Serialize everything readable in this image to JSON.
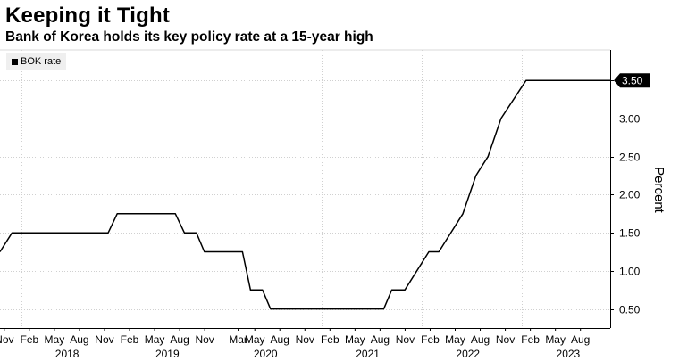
{
  "chart_data": {
    "type": "line",
    "title": "Keeping it Tight",
    "subtitle": "Bank of Korea holds its key policy rate at a 15-year high",
    "ylabel": "Percent",
    "ylim": [
      0.25,
      3.9
    ],
    "yticks": [
      0.5,
      1.0,
      1.5,
      2.0,
      2.5,
      3.0,
      3.5
    ],
    "ytick_labels": [
      "0.50",
      "1.00",
      "1.50",
      "2.00",
      "2.50",
      "3.00",
      "3.50"
    ],
    "xlim": [
      2017.79,
      2023.88
    ],
    "month_ticks": [
      {
        "label": "Nov",
        "x": 2017.833
      },
      {
        "label": "Feb",
        "x": 2018.083
      },
      {
        "label": "May",
        "x": 2018.333
      },
      {
        "label": "Aug",
        "x": 2018.583
      },
      {
        "label": "Nov",
        "x": 2018.833
      },
      {
        "label": "Feb",
        "x": 2019.083
      },
      {
        "label": "May",
        "x": 2019.333
      },
      {
        "label": "Aug",
        "x": 2019.583
      },
      {
        "label": "Nov",
        "x": 2019.833
      },
      {
        "label": "Mar",
        "x": 2020.167
      },
      {
        "label": "May",
        "x": 2020.333
      },
      {
        "label": "Aug",
        "x": 2020.583
      },
      {
        "label": "Nov",
        "x": 2020.833
      },
      {
        "label": "Feb",
        "x": 2021.083
      },
      {
        "label": "May",
        "x": 2021.333
      },
      {
        "label": "Aug",
        "x": 2021.583
      },
      {
        "label": "Nov",
        "x": 2021.833
      },
      {
        "label": "Feb",
        "x": 2022.083
      },
      {
        "label": "May",
        "x": 2022.333
      },
      {
        "label": "Aug",
        "x": 2022.583
      },
      {
        "label": "Nov",
        "x": 2022.833
      },
      {
        "label": "Feb",
        "x": 2023.083
      },
      {
        "label": "May",
        "x": 2023.333
      },
      {
        "label": "Aug",
        "x": 2023.583
      }
    ],
    "year_ticks": [
      {
        "label": "2018",
        "x": 2018.46
      },
      {
        "label": "2019",
        "x": 2019.46
      },
      {
        "label": "2020",
        "x": 2020.44
      },
      {
        "label": "2021",
        "x": 2021.46
      },
      {
        "label": "2022",
        "x": 2022.46
      },
      {
        "label": "2023",
        "x": 2023.46
      }
    ],
    "series": [
      {
        "name": "BOK rate",
        "color": "#000000",
        "last_value_label": "3.50",
        "points": [
          [
            2017.79,
            1.25
          ],
          [
            2017.91,
            1.5
          ],
          [
            2018.87,
            1.5
          ],
          [
            2018.96,
            1.75
          ],
          [
            2019.54,
            1.75
          ],
          [
            2019.63,
            1.5
          ],
          [
            2019.75,
            1.5
          ],
          [
            2019.83,
            1.25
          ],
          [
            2020.21,
            1.25
          ],
          [
            2020.29,
            0.75
          ],
          [
            2020.41,
            0.75
          ],
          [
            2020.49,
            0.5
          ],
          [
            2021.62,
            0.5
          ],
          [
            2021.7,
            0.75
          ],
          [
            2021.83,
            0.75
          ],
          [
            2022.07,
            1.25
          ],
          [
            2022.17,
            1.25
          ],
          [
            2022.41,
            1.75
          ],
          [
            2022.54,
            2.25
          ],
          [
            2022.66,
            2.5
          ],
          [
            2022.79,
            3.0
          ],
          [
            2023.04,
            3.5
          ],
          [
            2023.88,
            3.5
          ]
        ]
      }
    ]
  }
}
